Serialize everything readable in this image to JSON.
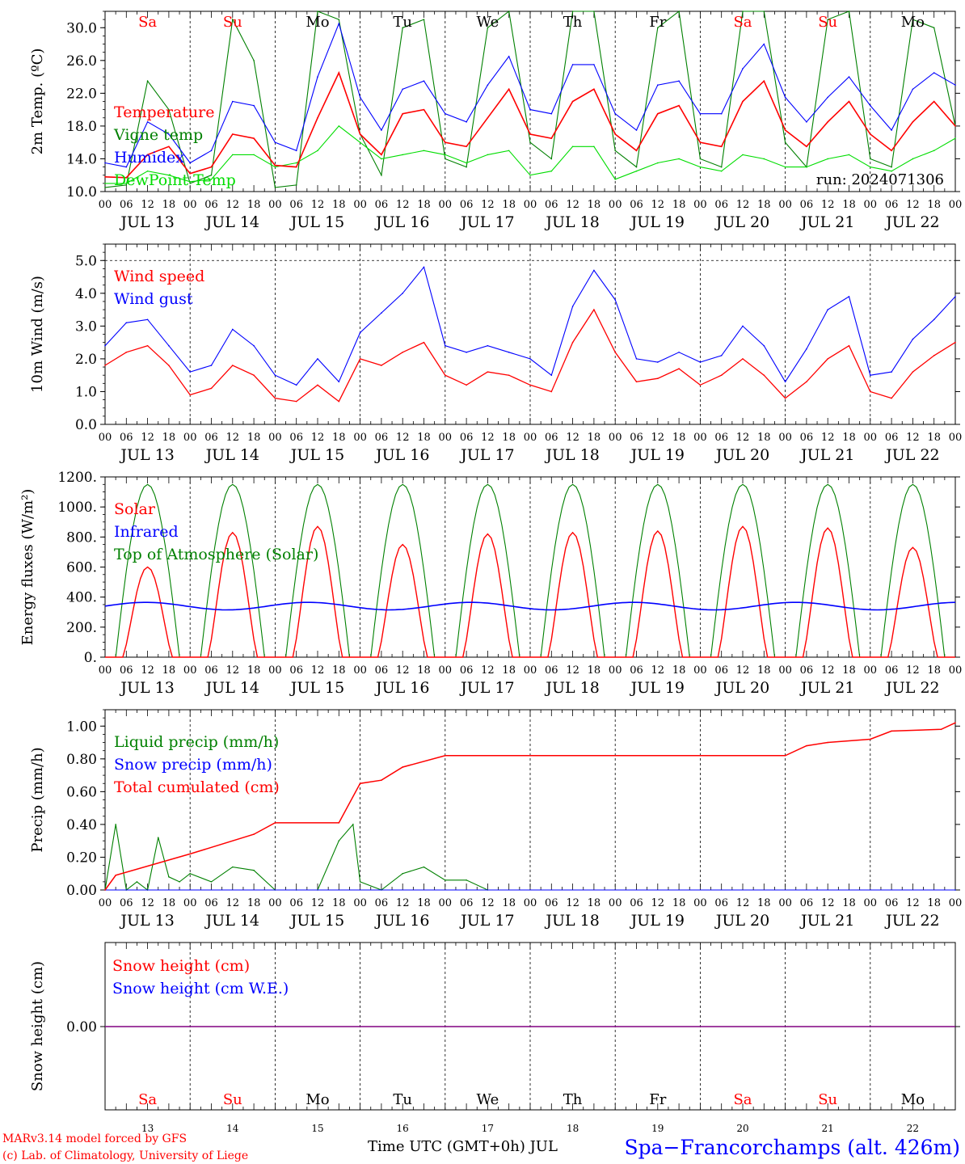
{
  "chart_data": [
    {
      "type": "line",
      "ylabel": "2m Temp. (ºC)",
      "ylim": [
        10,
        32
      ],
      "yticks": [
        "10.0",
        "14.0",
        "18.0",
        "22.0",
        "26.0",
        "30.0"
      ],
      "legend_placement": "left",
      "run_label": "run: 2024071306",
      "x_hours": [
        0,
        6,
        12,
        18,
        24,
        30,
        36,
        42,
        48,
        54,
        60,
        66,
        72,
        78,
        84,
        90,
        96,
        102,
        108,
        114,
        120,
        126,
        132,
        138,
        144,
        150,
        156,
        162,
        168,
        174,
        180,
        186,
        192,
        198,
        204,
        210,
        216,
        222,
        228,
        234,
        240
      ],
      "series": [
        {
          "name": "Temperature",
          "color": "#ff0000",
          "values": [
            11.8,
            11.7,
            14.5,
            15.5,
            12.2,
            13.0,
            17.0,
            16.5,
            13.2,
            13.0,
            19.0,
            24.5,
            17.0,
            14.5,
            19.5,
            20.0,
            16.0,
            15.5,
            19.0,
            22.5,
            17.0,
            16.5,
            21.0,
            22.5,
            17.0,
            15.0,
            19.5,
            20.5,
            16.0,
            15.5,
            21.0,
            23.5,
            17.5,
            15.5,
            18.5,
            21.0,
            17.0,
            15.0,
            18.5,
            21.0,
            18.0
          ]
        },
        {
          "name": "Vigne temp",
          "color": "#008000",
          "values": [
            10.5,
            10.8,
            23.5,
            20.0,
            11.0,
            12.0,
            31.0,
            26.0,
            10.5,
            10.8,
            32.0,
            31.0,
            17.0,
            12.0,
            30.0,
            31.0,
            14.0,
            13.0,
            30.0,
            32.0,
            16.0,
            14.0,
            32.0,
            32.0,
            15.0,
            13.0,
            30.0,
            32.0,
            14.0,
            13.0,
            32.0,
            32.0,
            16.0,
            13.0,
            31.0,
            32.0,
            14.0,
            13.0,
            31.0,
            30.0,
            18.0
          ]
        },
        {
          "name": "Humidex",
          "color": "#0000ff",
          "values": [
            13.5,
            13.0,
            18.5,
            17.0,
            13.5,
            15.0,
            21.0,
            20.5,
            16.0,
            15.0,
            24.0,
            30.5,
            21.5,
            17.5,
            22.5,
            23.5,
            19.5,
            18.5,
            23.0,
            26.5,
            20.0,
            19.5,
            25.5,
            25.5,
            19.5,
            17.5,
            23.0,
            23.5,
            19.5,
            19.5,
            25.0,
            28.0,
            21.5,
            18.5,
            21.5,
            24.0,
            20.5,
            17.5,
            22.5,
            24.5,
            23.0
          ]
        },
        {
          "name": "DewPoint Temp",
          "color": "#00dd00",
          "values": [
            11.0,
            11.0,
            12.5,
            12.0,
            11.2,
            11.5,
            14.5,
            14.5,
            13.0,
            13.5,
            15.0,
            18.0,
            16.0,
            14.0,
            14.5,
            15.0,
            14.5,
            13.5,
            14.5,
            15.0,
            12.0,
            12.5,
            15.5,
            15.5,
            11.5,
            12.5,
            13.5,
            14.0,
            13.0,
            12.5,
            14.5,
            14.0,
            13.0,
            13.0,
            14.0,
            14.5,
            13.0,
            12.5,
            14.0,
            15.0,
            16.5
          ]
        }
      ]
    },
    {
      "type": "line",
      "ylabel": "10m Wind (m/s)",
      "ylim": [
        0,
        5.5
      ],
      "yticks": [
        "0.0",
        "1.0",
        "2.0",
        "3.0",
        "4.0",
        "5.0"
      ],
      "dashed_reference": 5.0,
      "legend_placement": "left",
      "x_hours": [
        0,
        6,
        12,
        18,
        24,
        30,
        36,
        42,
        48,
        54,
        60,
        66,
        72,
        78,
        84,
        90,
        96,
        102,
        108,
        114,
        120,
        126,
        132,
        138,
        144,
        150,
        156,
        162,
        168,
        174,
        180,
        186,
        192,
        198,
        204,
        210,
        216,
        222,
        228,
        234,
        240
      ],
      "series": [
        {
          "name": "Wind speed",
          "color": "#ff0000",
          "values": [
            1.8,
            2.2,
            2.4,
            1.8,
            0.9,
            1.1,
            1.8,
            1.5,
            0.8,
            0.7,
            1.2,
            0.7,
            2.0,
            1.8,
            2.2,
            2.5,
            1.5,
            1.2,
            1.6,
            1.5,
            1.2,
            1.0,
            2.5,
            3.5,
            2.2,
            1.3,
            1.4,
            1.7,
            1.2,
            1.5,
            2.0,
            1.5,
            0.8,
            1.3,
            2.0,
            2.4,
            1.0,
            0.8,
            1.6,
            2.1,
            2.5
          ]
        },
        {
          "name": "Wind gust",
          "color": "#0000ff",
          "values": [
            2.4,
            3.1,
            3.2,
            2.4,
            1.6,
            1.8,
            2.9,
            2.4,
            1.5,
            1.2,
            2.0,
            1.3,
            2.8,
            3.4,
            4.0,
            4.8,
            2.4,
            2.2,
            2.4,
            2.2,
            2.0,
            1.5,
            3.6,
            4.7,
            3.8,
            2.0,
            1.9,
            2.2,
            1.9,
            2.1,
            3.0,
            2.4,
            1.3,
            2.3,
            3.5,
            3.9,
            1.5,
            1.6,
            2.6,
            3.2,
            3.9
          ]
        }
      ]
    },
    {
      "type": "line",
      "ylabel": "Energy fluxes (W/m²)",
      "ylim": [
        0,
        1200
      ],
      "yticks": [
        "0.",
        "200.",
        "400.",
        "600.",
        "800.",
        "1000.",
        "1200."
      ],
      "legend_placement": "left",
      "day_peak_solar": [
        600,
        830,
        870,
        750,
        820,
        830,
        840,
        870,
        860,
        730
      ],
      "infrared_level": 340,
      "toa_peak": 1150,
      "series": [
        {
          "name": "Solar",
          "color": "#ff0000"
        },
        {
          "name": "Infrared",
          "color": "#0000ff"
        },
        {
          "name": "Top of Atmosphere (Solar)",
          "color": "#008000"
        }
      ]
    },
    {
      "type": "line",
      "ylabel": "Precip (mm/h)",
      "ylim": [
        0,
        1.1
      ],
      "yticks": [
        "0.00",
        "0.20",
        "0.40",
        "0.60",
        "0.80",
        "1.00"
      ],
      "legend_placement": "left",
      "series": [
        {
          "name": "Liquid precip (mm/h)",
          "color": "#008000",
          "x_hours": [
            0,
            3,
            6,
            9,
            12,
            15,
            18,
            21,
            24,
            30,
            36,
            42,
            48,
            54,
            60,
            66,
            70,
            72,
            78,
            84,
            90,
            96,
            102,
            108,
            240
          ],
          "values": [
            0.0,
            0.4,
            0.0,
            0.05,
            0.0,
            0.32,
            0.08,
            0.05,
            0.1,
            0.05,
            0.14,
            0.12,
            0.0,
            0.0,
            0.0,
            0.3,
            0.4,
            0.05,
            0.0,
            0.1,
            0.14,
            0.06,
            0.06,
            0.0,
            0.0
          ]
        },
        {
          "name": "Snow precip (mm/h)",
          "color": "#0000ff",
          "x_hours": [
            0,
            240
          ],
          "values": [
            0.0,
            0.0
          ]
        },
        {
          "name": "Total cumulated (cm)",
          "color": "#ff0000",
          "x_hours": [
            0,
            3,
            24,
            42,
            48,
            66,
            72,
            78,
            84,
            96,
            192,
            198,
            204,
            216,
            222,
            236,
            240
          ],
          "values": [
            0.0,
            0.09,
            0.22,
            0.34,
            0.41,
            0.41,
            0.65,
            0.67,
            0.75,
            0.82,
            0.82,
            0.88,
            0.9,
            0.92,
            0.97,
            0.98,
            1.02
          ]
        }
      ]
    },
    {
      "type": "line",
      "ylabel": "Snow height (cm)",
      "yticks": [
        "0.00"
      ],
      "legend_placement": "left",
      "series": [
        {
          "name": "Snow height (cm)",
          "color": "#ff0000",
          "x_hours": [
            0,
            240
          ],
          "values": [
            0.0,
            0.0
          ]
        },
        {
          "name": "Snow height (cm W.E.)",
          "color": "#0000ff",
          "x_hours": [
            0,
            240
          ],
          "values": [
            0.0,
            0.0
          ]
        }
      ]
    }
  ],
  "axis": {
    "hour_labels": [
      "00",
      "06",
      "12",
      "18"
    ],
    "final_hour_label": "00",
    "dates": [
      "JUL 13",
      "JUL 14",
      "JUL 15",
      "JUL 16",
      "JUL 17",
      "JUL 18",
      "JUL 19",
      "JUL 20",
      "JUL 21",
      "JUL 22"
    ],
    "weekdays": [
      "Sa",
      "Su",
      "Mo",
      "Tu",
      "We",
      "Th",
      "Fr",
      "Sa",
      "Su",
      "Mo"
    ],
    "weekend_flags": [
      true,
      true,
      false,
      false,
      false,
      false,
      false,
      true,
      true,
      false
    ],
    "day_numbers": [
      "13",
      "14",
      "15",
      "16",
      "17",
      "18",
      "19",
      "20",
      "21",
      "22"
    ],
    "xlabel": "Time UTC (GMT+0h) JUL"
  },
  "footer": {
    "credit_line1": "MARv3.14 model forced by GFS",
    "credit_line2": "(c) Lab. of Climatology, University of Liege",
    "station": "Spa−Francorchamps (alt. 426m)"
  },
  "colors": {
    "weekend": "#ff0000",
    "weekday": "#000000",
    "station": "#0000ff",
    "credit": "#ff0000"
  }
}
